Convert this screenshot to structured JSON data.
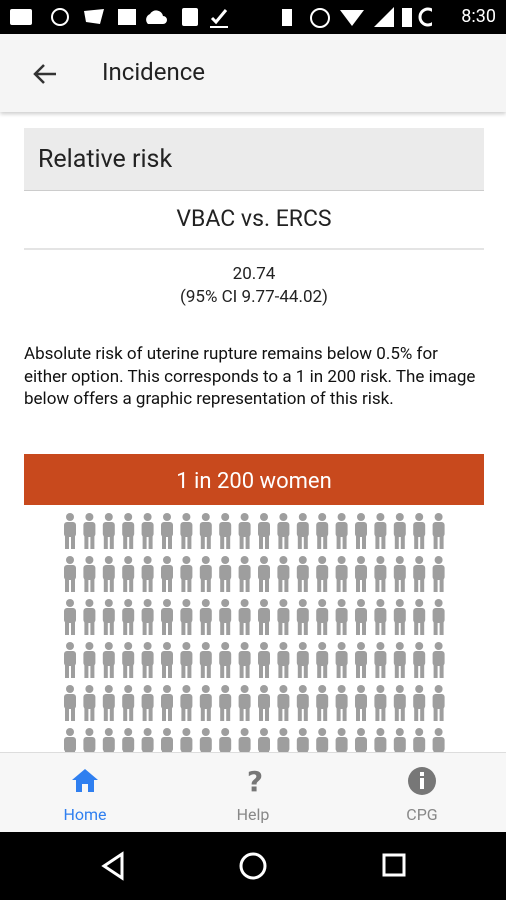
{
  "status_bar": {
    "time": "8:30"
  },
  "header": {
    "title": "Incidence"
  },
  "section": {
    "title": "Relative risk",
    "comparison": "VBAC vs. ERCS",
    "value": "20.74",
    "ci": "(95% CI 9.77-44.02)"
  },
  "description": "Absolute risk of uterine rupture remains below 0.5% for either option. This corresponds to a 1 in 200 risk. The image below offers a graphic representation of this risk.",
  "banner": "1 in 200 women",
  "tabs": [
    {
      "label": "Home"
    },
    {
      "label": "Help"
    },
    {
      "label": "CPG"
    }
  ]
}
